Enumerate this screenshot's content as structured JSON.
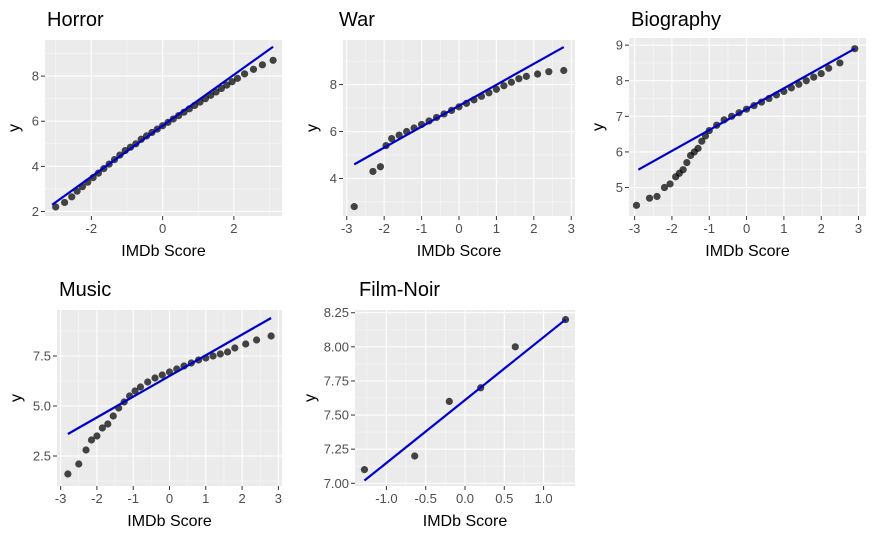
{
  "chart_data": [
    {
      "type": "scatter",
      "title": "Horror",
      "xlabel": "IMDb Score",
      "ylabel": "y",
      "xlim": [
        -3.3,
        3.35
      ],
      "ylim": [
        1.8,
        9.6
      ],
      "xticks": [
        -2,
        0,
        2
      ],
      "yticks": [
        2,
        4,
        6,
        8
      ],
      "ytick_labels": [
        "2",
        "4",
        "6",
        "8"
      ],
      "grid": true,
      "line": {
        "x": [
          -3.1,
          3.1
        ],
        "y": [
          2.3,
          9.3
        ],
        "color": "#0000cc"
      },
      "x": [
        -3.0,
        -2.75,
        -2.55,
        -2.4,
        -2.25,
        -2.1,
        -1.95,
        -1.8,
        -1.65,
        -1.5,
        -1.35,
        -1.2,
        -1.05,
        -0.9,
        -0.75,
        -0.6,
        -0.45,
        -0.3,
        -0.15,
        0.0,
        0.15,
        0.3,
        0.45,
        0.6,
        0.75,
        0.9,
        1.05,
        1.2,
        1.35,
        1.5,
        1.65,
        1.8,
        1.95,
        2.1,
        2.3,
        2.55,
        2.8,
        3.1
      ],
      "y": [
        2.2,
        2.4,
        2.65,
        2.9,
        3.1,
        3.3,
        3.5,
        3.7,
        3.9,
        4.1,
        4.3,
        4.5,
        4.7,
        4.85,
        5.0,
        5.2,
        5.35,
        5.5,
        5.65,
        5.8,
        5.95,
        6.1,
        6.25,
        6.4,
        6.55,
        6.7,
        6.85,
        7.0,
        7.15,
        7.3,
        7.45,
        7.6,
        7.75,
        7.9,
        8.1,
        8.3,
        8.5,
        8.7
      ]
    },
    {
      "type": "scatter",
      "title": "War",
      "xlabel": "IMDb Score",
      "ylabel": "y",
      "xlim": [
        -3.1,
        3.1
      ],
      "ylim": [
        2.4,
        9.9
      ],
      "xticks": [
        -3,
        -2,
        -1,
        0,
        1,
        2,
        3
      ],
      "yticks": [
        4,
        6,
        8
      ],
      "ytick_labels": [
        "4",
        "6",
        "8"
      ],
      "grid": true,
      "line": {
        "x": [
          -2.8,
          2.8
        ],
        "y": [
          4.6,
          9.6
        ],
        "color": "#0000cc"
      },
      "x": [
        -2.8,
        -2.3,
        -2.1,
        -1.95,
        -1.8,
        -1.6,
        -1.4,
        -1.2,
        -1.0,
        -0.8,
        -0.6,
        -0.4,
        -0.2,
        0.0,
        0.2,
        0.4,
        0.6,
        0.8,
        1.0,
        1.2,
        1.4,
        1.6,
        1.8,
        2.1,
        2.4,
        2.8
      ],
      "y": [
        2.8,
        4.3,
        4.5,
        5.4,
        5.7,
        5.85,
        6.0,
        6.15,
        6.3,
        6.45,
        6.6,
        6.75,
        6.9,
        7.05,
        7.2,
        7.35,
        7.5,
        7.65,
        7.8,
        7.95,
        8.1,
        8.25,
        8.35,
        8.45,
        8.55,
        8.6
      ]
    },
    {
      "type": "scatter",
      "title": "Biography",
      "xlabel": "IMDb Score",
      "ylabel": "y",
      "xlim": [
        -3.15,
        3.2
      ],
      "ylim": [
        4.2,
        9.2
      ],
      "xticks": [
        -3,
        -2,
        -1,
        0,
        1,
        2,
        3
      ],
      "yticks": [
        5,
        6,
        7,
        8,
        9
      ],
      "ytick_labels": [
        "5",
        "6",
        "7",
        "8",
        "9"
      ],
      "grid": true,
      "line": {
        "x": [
          -2.9,
          2.9
        ],
        "y": [
          5.5,
          8.9
        ],
        "color": "#0000cc"
      },
      "x": [
        -2.95,
        -2.6,
        -2.4,
        -2.2,
        -2.05,
        -1.9,
        -1.8,
        -1.7,
        -1.6,
        -1.5,
        -1.4,
        -1.3,
        -1.2,
        -1.1,
        -1.0,
        -0.8,
        -0.6,
        -0.4,
        -0.2,
        0.0,
        0.2,
        0.4,
        0.6,
        0.8,
        1.0,
        1.2,
        1.4,
        1.6,
        1.8,
        2.0,
        2.2,
        2.5,
        2.9
      ],
      "y": [
        4.5,
        4.7,
        4.75,
        5.0,
        5.1,
        5.3,
        5.4,
        5.5,
        5.7,
        5.9,
        6.0,
        6.1,
        6.3,
        6.45,
        6.6,
        6.75,
        6.9,
        7.0,
        7.1,
        7.2,
        7.3,
        7.4,
        7.5,
        7.6,
        7.7,
        7.8,
        7.9,
        8.0,
        8.1,
        8.2,
        8.35,
        8.5,
        8.9
      ]
    },
    {
      "type": "scatter",
      "title": "Music",
      "xlabel": "IMDb Score",
      "ylabel": "y",
      "xlim": [
        -3.1,
        3.1
      ],
      "ylim": [
        1.0,
        9.8
      ],
      "xticks": [
        -3,
        -2,
        -1,
        0,
        1,
        2,
        3
      ],
      "yticks": [
        2.5,
        5.0,
        7.5
      ],
      "ytick_labels": [
        "2.5",
        "5.0",
        "7.5"
      ],
      "grid": true,
      "line": {
        "x": [
          -2.8,
          2.8
        ],
        "y": [
          3.6,
          9.4
        ],
        "color": "#0000cc"
      },
      "x": [
        -2.8,
        -2.5,
        -2.3,
        -2.15,
        -2.0,
        -1.85,
        -1.7,
        -1.55,
        -1.4,
        -1.25,
        -1.1,
        -0.95,
        -0.8,
        -0.6,
        -0.4,
        -0.2,
        0.0,
        0.2,
        0.4,
        0.6,
        0.8,
        1.0,
        1.2,
        1.4,
        1.6,
        1.8,
        2.1,
        2.4,
        2.8
      ],
      "y": [
        1.6,
        2.1,
        2.8,
        3.3,
        3.5,
        3.9,
        4.1,
        4.5,
        4.9,
        5.2,
        5.5,
        5.75,
        5.95,
        6.2,
        6.4,
        6.55,
        6.7,
        6.85,
        7.0,
        7.15,
        7.3,
        7.4,
        7.5,
        7.6,
        7.7,
        7.9,
        8.1,
        8.3,
        8.5
      ]
    },
    {
      "type": "scatter",
      "title": "Film-Noir",
      "xlabel": "IMDb Score",
      "ylabel": "y",
      "xlim": [
        -1.4,
        1.4
      ],
      "ylim": [
        6.98,
        8.27
      ],
      "xticks": [
        -1.0,
        -0.5,
        0.0,
        0.5,
        1.0
      ],
      "xtick_labels": [
        "-1.0",
        "-0.5",
        "0.0",
        "0.5",
        "1.0"
      ],
      "yticks": [
        7.0,
        7.25,
        7.5,
        7.75,
        8.0,
        8.25
      ],
      "ytick_labels": [
        "7.00",
        "7.25",
        "7.50",
        "7.75",
        "8.00",
        "8.25"
      ],
      "grid": true,
      "line": {
        "x": [
          -1.28,
          1.28
        ],
        "y": [
          7.02,
          8.2
        ],
        "color": "#0000cc"
      },
      "x": [
        -1.28,
        -0.64,
        -0.2,
        0.2,
        0.64,
        1.28
      ],
      "y": [
        7.1,
        7.2,
        7.6,
        7.7,
        8.0,
        8.2
      ]
    }
  ]
}
